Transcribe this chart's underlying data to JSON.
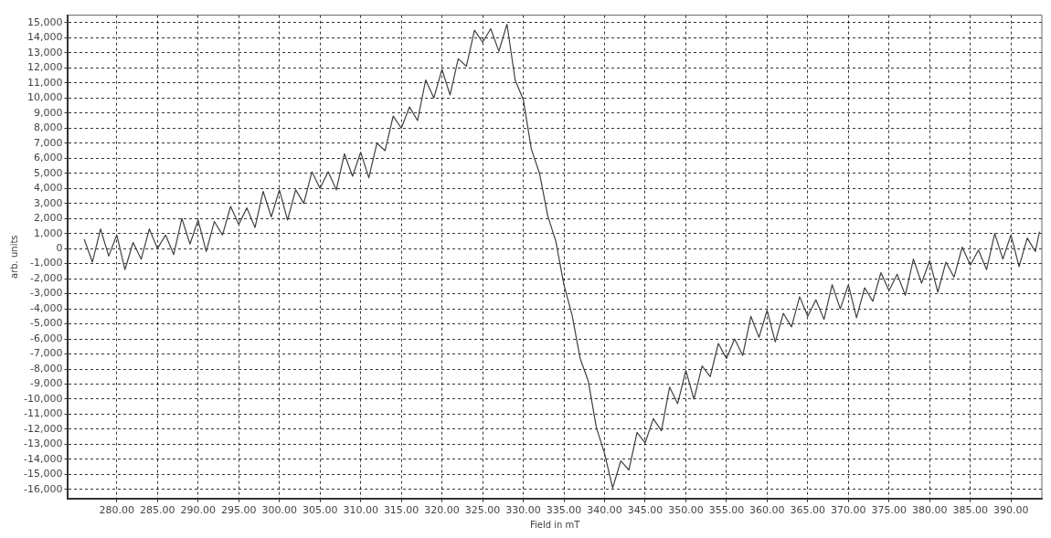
{
  "chart_data": {
    "type": "line",
    "xlabel": "Field in mT",
    "ylabel": "arb. units",
    "xlim": [
      274,
      393.8
    ],
    "ylim": [
      -16600,
      15500
    ],
    "xticks": [
      {
        "value": 280,
        "label": "280.00"
      },
      {
        "value": 285,
        "label": "285.00"
      },
      {
        "value": 290,
        "label": "290.00"
      },
      {
        "value": 295,
        "label": "295.00"
      },
      {
        "value": 300,
        "label": "300.00"
      },
      {
        "value": 305,
        "label": "305.00"
      },
      {
        "value": 310,
        "label": "310.00"
      },
      {
        "value": 315,
        "label": "315.00"
      },
      {
        "value": 320,
        "label": "320.00"
      },
      {
        "value": 325,
        "label": "325.00"
      },
      {
        "value": 330,
        "label": "330.00"
      },
      {
        "value": 335,
        "label": "335.00"
      },
      {
        "value": 340,
        "label": "340.00"
      },
      {
        "value": 345,
        "label": "345.00"
      },
      {
        "value": 350,
        "label": "350.00"
      },
      {
        "value": 355,
        "label": "355.00"
      },
      {
        "value": 360,
        "label": "360.00"
      },
      {
        "value": 365,
        "label": "365.00"
      },
      {
        "value": 370,
        "label": "370.00"
      },
      {
        "value": 375,
        "label": "375.00"
      },
      {
        "value": 380,
        "label": "380.00"
      },
      {
        "value": 385,
        "label": "385.00"
      },
      {
        "value": 390,
        "label": "390.00"
      }
    ],
    "yticks": [
      {
        "value": 15000,
        "label": "15,000"
      },
      {
        "value": 14000,
        "label": "14,000"
      },
      {
        "value": 13000,
        "label": "13,000"
      },
      {
        "value": 12000,
        "label": "12,000"
      },
      {
        "value": 11000,
        "label": "11,000"
      },
      {
        "value": 10000,
        "label": "10,000"
      },
      {
        "value": 9000,
        "label": "9,000"
      },
      {
        "value": 8000,
        "label": "8,000"
      },
      {
        "value": 7000,
        "label": "7,000"
      },
      {
        "value": 6000,
        "label": "6,000"
      },
      {
        "value": 5000,
        "label": "5,000"
      },
      {
        "value": 4000,
        "label": "4,000"
      },
      {
        "value": 3000,
        "label": "3,000"
      },
      {
        "value": 2000,
        "label": "2,000"
      },
      {
        "value": 1000,
        "label": "1,000"
      },
      0,
      {
        "value": -1000,
        "label": "-1,000"
      },
      {
        "value": -2000,
        "label": "-2,000"
      },
      {
        "value": -3000,
        "label": "-3,000"
      },
      {
        "value": -4000,
        "label": "-4,000"
      },
      {
        "value": -5000,
        "label": "-5,000"
      },
      {
        "value": -6000,
        "label": "-6,000"
      },
      {
        "value": -7000,
        "label": "-7,000"
      },
      {
        "value": -8000,
        "label": "-8,000"
      },
      {
        "value": -9000,
        "label": "-9,000"
      },
      {
        "value": -10000,
        "label": "-10,000"
      },
      {
        "value": -11000,
        "label": "-11,000"
      },
      {
        "value": -12000,
        "label": "-12,000"
      },
      {
        "value": -13000,
        "label": "-13,000"
      },
      {
        "value": -14000,
        "label": "-14,000"
      },
      {
        "value": -15000,
        "label": "-15,000"
      },
      {
        "value": -16000,
        "label": "-16,000"
      }
    ],
    "grid": true,
    "marker": "none",
    "line_style": "solid",
    "series": [
      {
        "color": "#404040",
        "x": [
          276,
          277,
          278,
          279,
          280,
          281,
          282,
          283,
          284,
          285,
          286,
          287,
          288,
          289,
          290,
          291,
          292,
          293,
          294,
          295,
          296,
          297,
          298,
          299,
          300,
          301,
          302,
          303,
          304,
          305,
          306,
          307,
          308,
          309,
          310,
          311,
          312,
          313,
          314,
          315,
          316,
          317,
          318,
          319,
          320,
          321,
          322,
          323,
          324,
          325,
          326,
          327,
          328,
          329,
          330,
          331,
          332,
          333,
          334,
          335,
          336,
          337,
          338,
          339,
          340,
          341,
          342,
          343,
          344,
          345,
          346,
          347,
          348,
          349,
          350,
          351,
          352,
          353,
          354,
          355,
          356,
          357,
          358,
          359,
          360,
          361,
          362,
          363,
          364,
          365,
          366,
          367,
          368,
          369,
          370,
          371,
          372,
          373,
          374,
          375,
          376,
          377,
          378,
          379,
          380,
          381,
          382,
          383,
          384,
          385,
          386,
          387,
          388,
          389,
          390,
          391,
          392,
          393,
          393.5
        ],
        "values": [
          600,
          -900,
          1300,
          -500,
          900,
          -1400,
          400,
          -700,
          1300,
          0,
          900,
          -400,
          2000,
          300,
          1900,
          -200,
          1800,
          900,
          2800,
          1600,
          2700,
          1400,
          3800,
          2100,
          3900,
          1900,
          3900,
          3000,
          5100,
          4000,
          5100,
          3900,
          6300,
          4800,
          6400,
          4700,
          7000,
          6500,
          8800,
          8000,
          9400,
          8500,
          11200,
          10000,
          11900,
          10200,
          12600,
          12100,
          14500,
          13700,
          14600,
          13100,
          14900,
          11200,
          9900,
          6600,
          5000,
          2200,
          500,
          -2400,
          -4400,
          -7300,
          -8800,
          -11900,
          -13600,
          -15900,
          -14100,
          -14700,
          -12200,
          -12900,
          -11300,
          -12100,
          -9200,
          -10300,
          -8100,
          -10000,
          -7800,
          -8500,
          -6300,
          -7300,
          -6000,
          -7100,
          -4500,
          -5900,
          -4100,
          -6200,
          -4300,
          -5200,
          -3200,
          -4500,
          -3400,
          -4700,
          -2400,
          -4000,
          -2400,
          -4600,
          -2600,
          -3500,
          -1600,
          -2800,
          -1700,
          -3100,
          -700,
          -2300,
          -800,
          -2900,
          -900,
          -1900,
          100,
          -1100,
          -100,
          -1400,
          1000,
          -700,
          900,
          -1200,
          700,
          -200,
          1100
        ]
      }
    ]
  }
}
